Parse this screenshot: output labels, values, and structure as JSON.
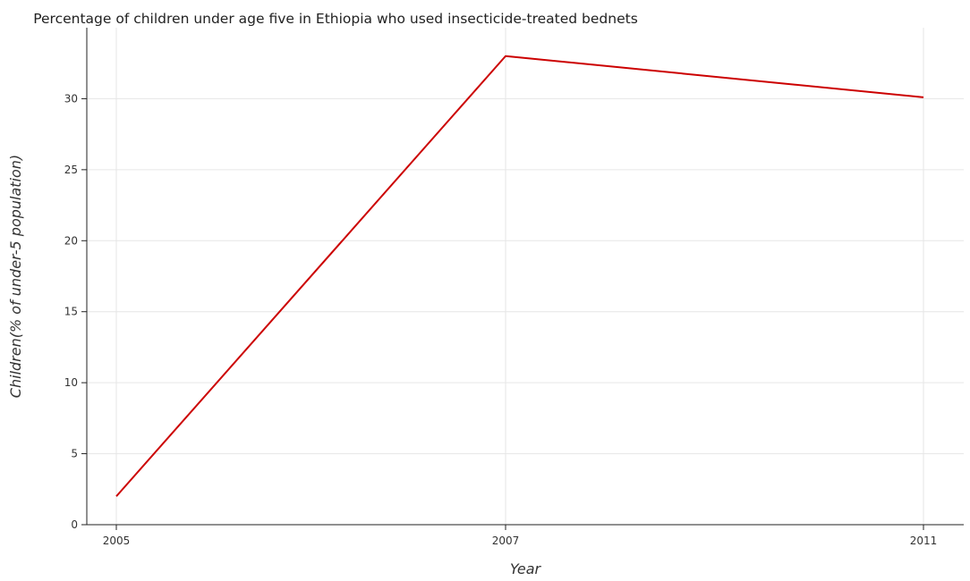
{
  "chart_data": {
    "type": "line",
    "title": "Percentage of children under age five in Ethiopia who used insecticide-treated bednets",
    "xlabel": "Year",
    "ylabel": "Children(% of under-5 population)",
    "x": [
      "2005",
      "2007",
      "2011"
    ],
    "series": [
      {
        "values": [
          2.0,
          33.0,
          30.1
        ],
        "color": "#cc0000"
      }
    ],
    "ylim": [
      0,
      35
    ],
    "yticks": [
      0,
      5,
      10,
      15,
      20,
      25,
      30
    ],
    "grid": true,
    "legend": "none"
  }
}
